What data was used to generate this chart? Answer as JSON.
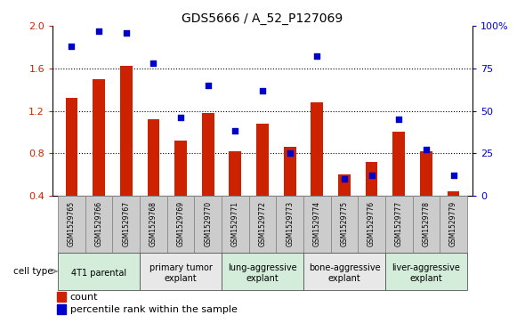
{
  "title": "GDS5666 / A_52_P127069",
  "samples": [
    "GSM1529765",
    "GSM1529766",
    "GSM1529767",
    "GSM1529768",
    "GSM1529769",
    "GSM1529770",
    "GSM1529771",
    "GSM1529772",
    "GSM1529773",
    "GSM1529774",
    "GSM1529775",
    "GSM1529776",
    "GSM1529777",
    "GSM1529778",
    "GSM1529779"
  ],
  "counts": [
    1.32,
    1.5,
    1.62,
    1.12,
    0.92,
    1.18,
    0.82,
    1.08,
    0.86,
    1.28,
    0.6,
    0.72,
    1.0,
    0.82,
    0.44
  ],
  "percentile_ranks": [
    88,
    97,
    96,
    78,
    46,
    65,
    38,
    62,
    25,
    82,
    10,
    12,
    45,
    27,
    12
  ],
  "ylim": [
    0.4,
    2.0
  ],
  "yticks": [
    0.4,
    0.8,
    1.2,
    1.6,
    2.0
  ],
  "right_ylim": [
    0,
    100
  ],
  "right_yticks": [
    0,
    25,
    50,
    75,
    100
  ],
  "right_yticklabels": [
    "0",
    "25",
    "50",
    "75",
    "100%"
  ],
  "bar_color": "#cc2200",
  "dot_color": "#0000cc",
  "cell_types": [
    {
      "label": "4T1 parental",
      "start": 0,
      "end": 3,
      "color": "#d4edda"
    },
    {
      "label": "primary tumor\nexplant",
      "start": 3,
      "end": 6,
      "color": "#e8e8e8"
    },
    {
      "label": "lung-aggressive\nexplant",
      "start": 6,
      "end": 9,
      "color": "#d4edda"
    },
    {
      "label": "bone-aggressive\nexplant",
      "start": 9,
      "end": 12,
      "color": "#e8e8e8"
    },
    {
      "label": "liver-aggressive\nexplant",
      "start": 12,
      "end": 15,
      "color": "#d4edda"
    }
  ],
  "legend_bar_label": "count",
  "legend_dot_label": "percentile rank within the sample",
  "bg_plot": "#ffffff",
  "sample_bg_color": "#cccccc",
  "bar_width": 0.45
}
